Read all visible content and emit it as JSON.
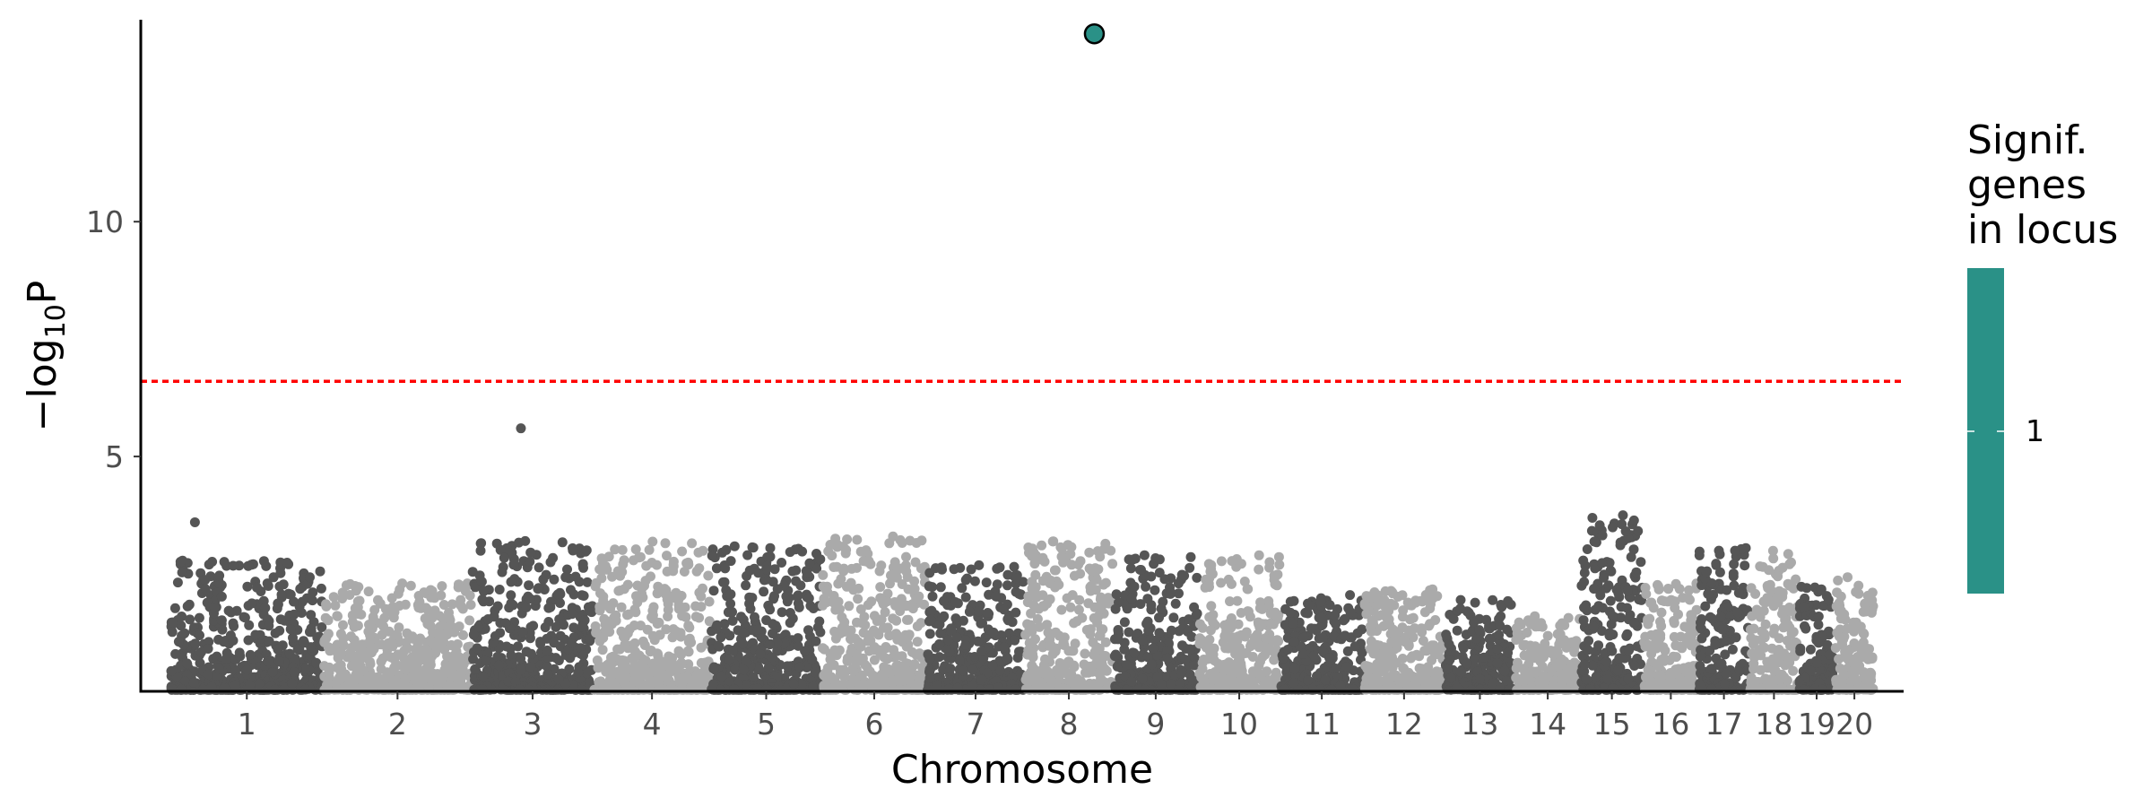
{
  "chart_data": {
    "type": "scatter",
    "subtype": "manhattan",
    "title": "",
    "xlabel": "Chromosome",
    "ylabel": {
      "prefix": "−log",
      "subscript": "10",
      "suffix": "P"
    },
    "ylim": [
      0,
      14.3
    ],
    "yticks": [
      5,
      10
    ],
    "grid": false,
    "significance_threshold": {
      "value": 6.6,
      "color": "#ff0000",
      "style": "dotted"
    },
    "point_colors": [
      "#555555",
      "#aaaaaa"
    ],
    "chromosomes": [
      {
        "label": "1",
        "start": 0.0,
        "end": 249.0,
        "max": 2.8
      },
      {
        "label": "2",
        "start": 249.0,
        "end": 491.0,
        "max": 2.3
      },
      {
        "label": "3",
        "start": 491.0,
        "end": 689.0,
        "max": 3.2
      },
      {
        "label": "4",
        "start": 689.0,
        "end": 880.0,
        "max": 3.2
      },
      {
        "label": "5",
        "start": 880.0,
        "end": 1061.0,
        "max": 3.1
      },
      {
        "label": "6",
        "start": 1061.0,
        "end": 1232.0,
        "max": 3.3
      },
      {
        "label": "7",
        "start": 1232.0,
        "end": 1391.0,
        "max": 2.7
      },
      {
        "label": "8",
        "start": 1391.0,
        "end": 1536.0,
        "max": 3.2
      },
      {
        "label": "9",
        "start": 1536.0,
        "end": 1674.0,
        "max": 2.9
      },
      {
        "label": "10",
        "start": 1674.0,
        "end": 1808.0,
        "max": 2.9
      },
      {
        "label": "11",
        "start": 1808.0,
        "end": 1943.0,
        "max": 2.1
      },
      {
        "label": "12",
        "start": 1943.0,
        "end": 2076.0,
        "max": 2.2
      },
      {
        "label": "13",
        "start": 2076.0,
        "end": 2190.0,
        "max": 2.0
      },
      {
        "label": "14",
        "start": 2190.0,
        "end": 2297.0,
        "max": 1.6
      },
      {
        "label": "15",
        "start": 2297.0,
        "end": 2399.0,
        "max": 3.7
      },
      {
        "label": "16",
        "start": 2399.0,
        "end": 2489.0,
        "max": 2.3
      },
      {
        "label": "17",
        "start": 2489.0,
        "end": 2572.0,
        "max": 3.1
      },
      {
        "label": "18",
        "start": 2572.0,
        "end": 2652.0,
        "max": 3.0
      },
      {
        "label": "19",
        "start": 2652.0,
        "end": 2711.0,
        "max": 2.3
      },
      {
        "label": "20",
        "start": 2711.0,
        "end": 2775.0,
        "max": 2.7
      }
    ],
    "highlighted_points": [
      {
        "chromosome": "8",
        "position": 1505.0,
        "y": 14.0,
        "color": "#2a9187"
      }
    ],
    "notable_points": [
      {
        "chromosome": "1",
        "position": 40.0,
        "y": 3.6
      },
      {
        "chromosome": "3",
        "position": 571.0,
        "y": 5.6
      },
      {
        "chromosome": "3",
        "position": 578.0,
        "y": 3.2
      },
      {
        "chromosome": "15",
        "position": 2366.0,
        "y": 3.75
      }
    ],
    "legend": {
      "title_lines": [
        "Signif.",
        "genes",
        "in locus"
      ],
      "labels": [
        "1"
      ],
      "color": "#2a9187",
      "placement": "right"
    }
  }
}
